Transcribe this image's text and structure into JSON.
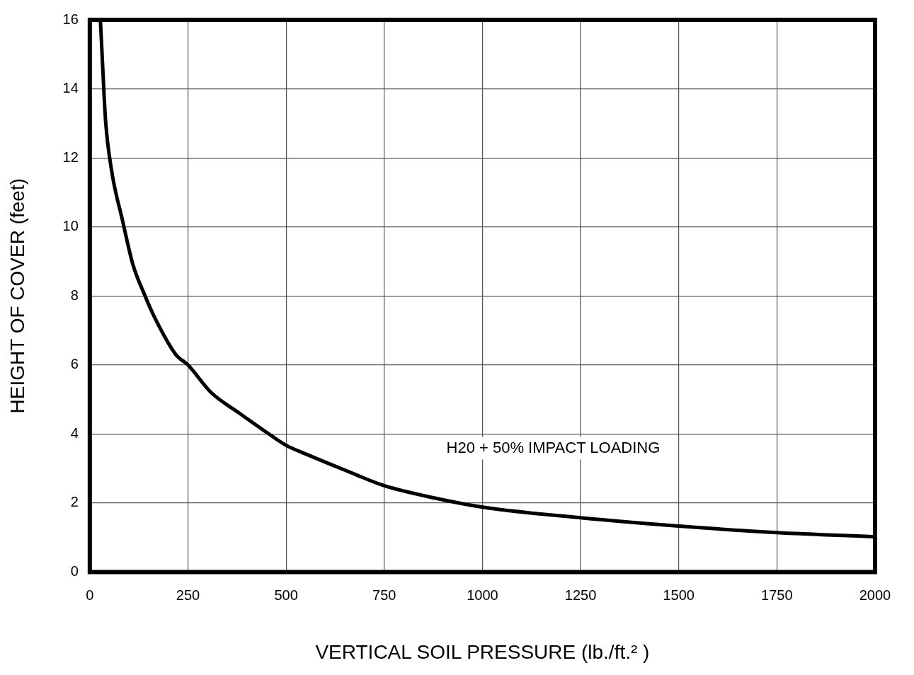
{
  "chart_data": {
    "type": "line",
    "xlabel": "VERTICAL SOIL PRESSURE (lb./ft.² )",
    "ylabel": "HEIGHT OF COVER (feet)",
    "x": [
      27,
      33,
      40,
      56,
      83,
      110,
      137,
      164,
      219,
      250,
      309,
      381,
      456,
      500,
      550,
      650,
      750,
      875,
      1000,
      1250,
      1500,
      1750,
      2000
    ],
    "series": [
      {
        "name": "H20 + 50% IMPACT LOADING",
        "color": "#000000",
        "values": [
          16,
          14.6,
          13.1,
          11.6,
          10.2,
          8.9,
          8.1,
          7.4,
          6.3,
          6,
          5.2,
          4.6,
          4,
          3.67,
          3.42,
          2.95,
          2.5,
          2.15,
          1.88,
          1.57,
          1.33,
          1.14,
          1.02
        ]
      }
    ],
    "xlim": [
      0,
      2000
    ],
    "xticks": [
      0,
      250,
      500,
      750,
      1000,
      1250,
      1500,
      1750,
      2000
    ],
    "ylim": [
      0,
      16
    ],
    "yticks": [
      0,
      2,
      4,
      6,
      8,
      10,
      12,
      14,
      16
    ],
    "grid": true,
    "legend": false,
    "marker": "none",
    "line_style": "solid"
  }
}
